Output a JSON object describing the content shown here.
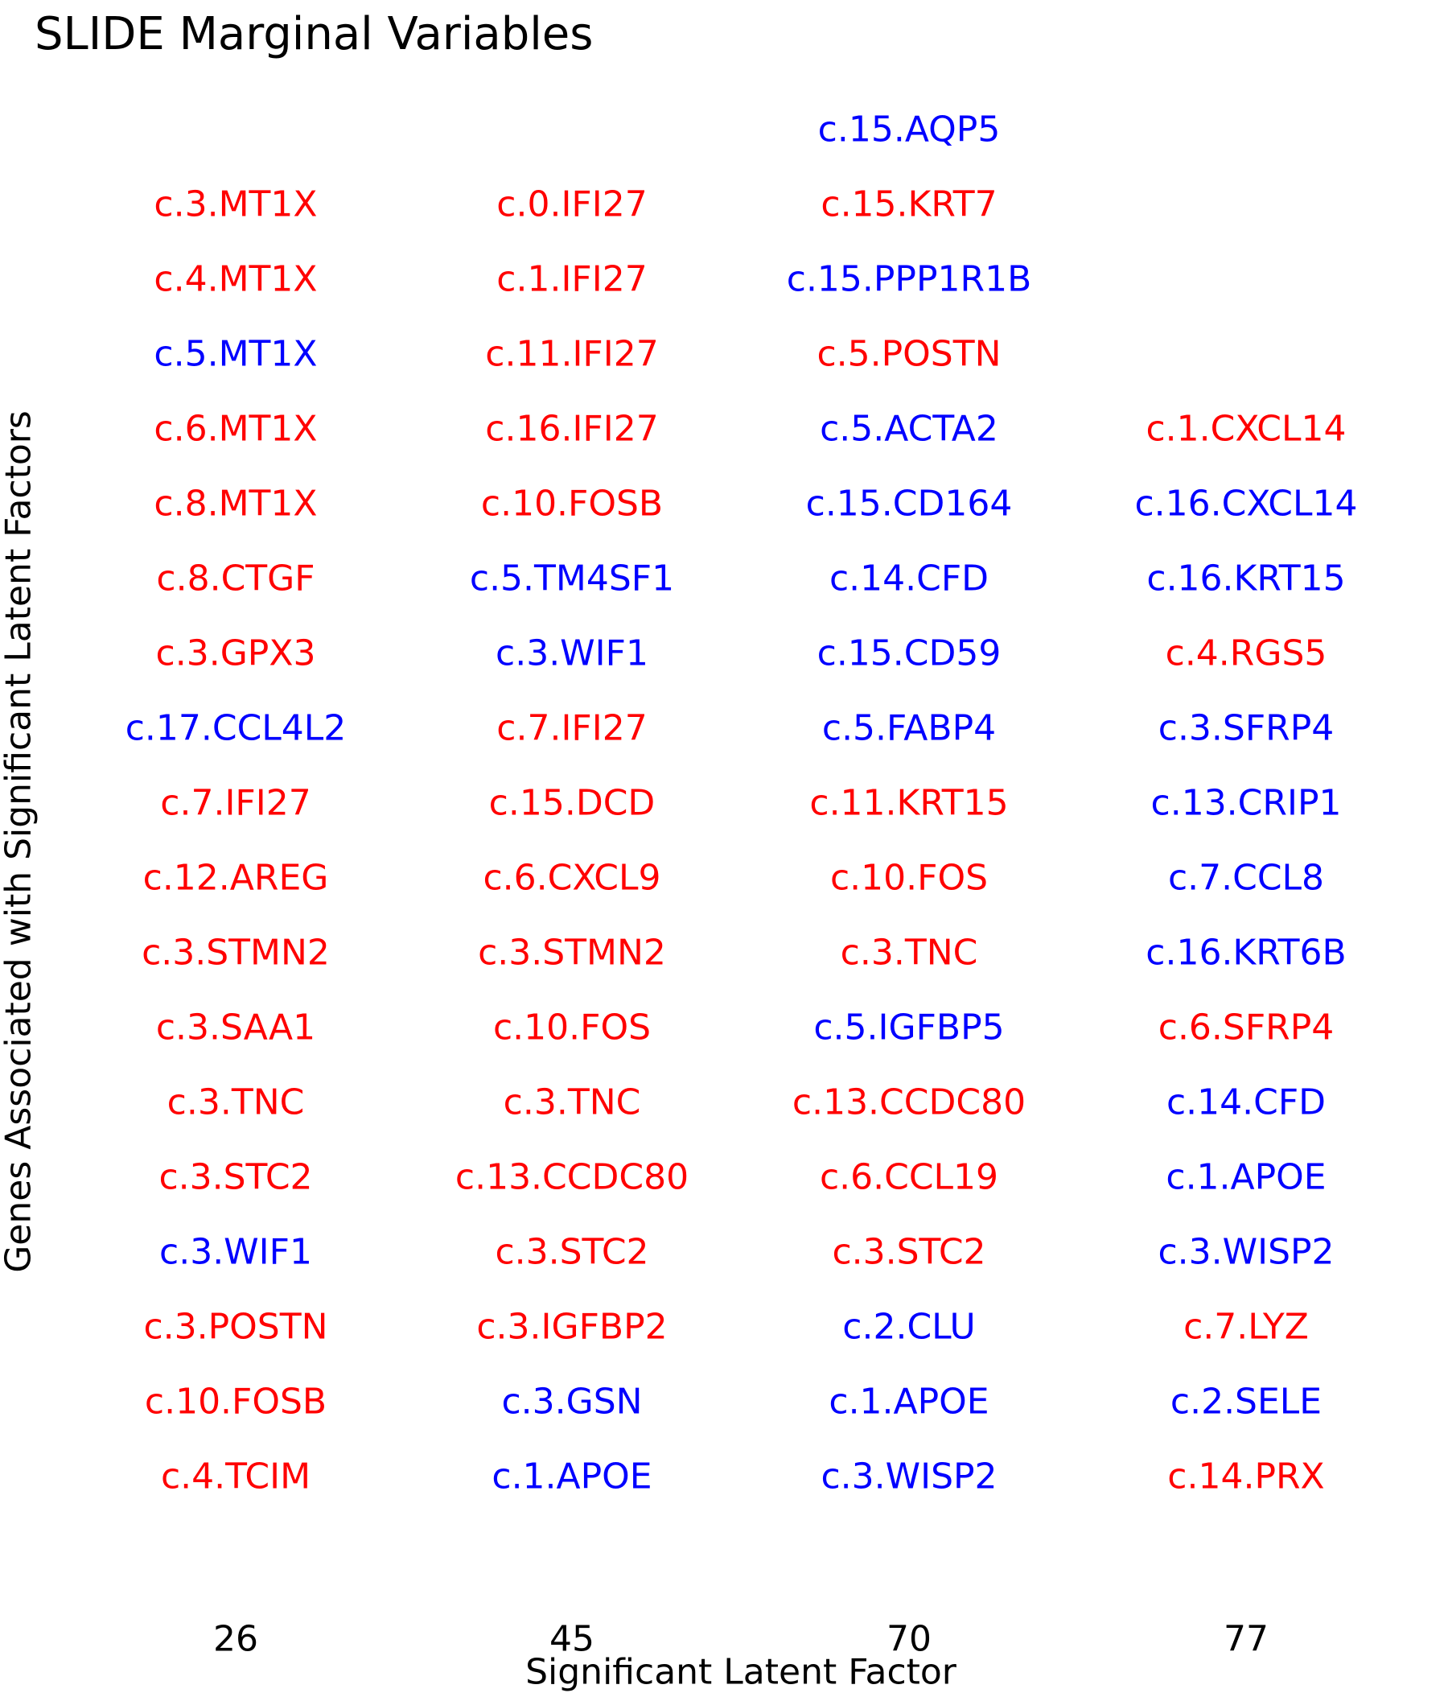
{
  "chart_data": {
    "type": "table",
    "title": "SLIDE Marginal Variables",
    "xlabel": "Significant Latent Factor",
    "ylabel": "Genes Associated with Significant Latent Factors",
    "colors": {
      "positive": "#ff0000",
      "negative": "#0000ff",
      "text": "#000000"
    },
    "grid": false,
    "legend": "none",
    "categories": [
      "26",
      "45",
      "70",
      "77"
    ],
    "series": [
      {
        "category": "26",
        "genes": [
          {
            "label": "c.3.MT1X",
            "color": "red"
          },
          {
            "label": "c.4.MT1X",
            "color": "red"
          },
          {
            "label": "c.5.MT1X",
            "color": "blue"
          },
          {
            "label": "c.6.MT1X",
            "color": "red"
          },
          {
            "label": "c.8.MT1X",
            "color": "red"
          },
          {
            "label": "c.8.CTGF",
            "color": "red"
          },
          {
            "label": "c.3.GPX3",
            "color": "red"
          },
          {
            "label": "c.17.CCL4L2",
            "color": "blue"
          },
          {
            "label": "c.7.IFI27",
            "color": "red"
          },
          {
            "label": "c.12.AREG",
            "color": "red"
          },
          {
            "label": "c.3.STMN2",
            "color": "red"
          },
          {
            "label": "c.3.SAA1",
            "color": "red"
          },
          {
            "label": "c.3.TNC",
            "color": "red"
          },
          {
            "label": "c.3.STC2",
            "color": "red"
          },
          {
            "label": "c.3.WIF1",
            "color": "blue"
          },
          {
            "label": "c.3.POSTN",
            "color": "red"
          },
          {
            "label": "c.10.FOSB",
            "color": "red"
          },
          {
            "label": "c.4.TCIM",
            "color": "red"
          }
        ]
      },
      {
        "category": "45",
        "genes": [
          {
            "label": "c.0.IFI27",
            "color": "red"
          },
          {
            "label": "c.1.IFI27",
            "color": "red"
          },
          {
            "label": "c.11.IFI27",
            "color": "red"
          },
          {
            "label": "c.16.IFI27",
            "color": "red"
          },
          {
            "label": "c.10.FOSB",
            "color": "red"
          },
          {
            "label": "c.5.TM4SF1",
            "color": "blue"
          },
          {
            "label": "c.3.WIF1",
            "color": "blue"
          },
          {
            "label": "c.7.IFI27",
            "color": "red"
          },
          {
            "label": "c.15.DCD",
            "color": "red"
          },
          {
            "label": "c.6.CXCL9",
            "color": "red"
          },
          {
            "label": "c.3.STMN2",
            "color": "red"
          },
          {
            "label": "c.10.FOS",
            "color": "red"
          },
          {
            "label": "c.3.TNC",
            "color": "red"
          },
          {
            "label": "c.13.CCDC80",
            "color": "red"
          },
          {
            "label": "c.3.STC2",
            "color": "red"
          },
          {
            "label": "c.3.IGFBP2",
            "color": "red"
          },
          {
            "label": "c.3.GSN",
            "color": "blue"
          },
          {
            "label": "c.1.APOE",
            "color": "blue"
          }
        ]
      },
      {
        "category": "70",
        "genes": [
          {
            "label": "c.15.AQP5",
            "color": "blue"
          },
          {
            "label": "c.15.KRT7",
            "color": "red"
          },
          {
            "label": "c.15.PPP1R1B",
            "color": "blue"
          },
          {
            "label": "c.5.POSTN",
            "color": "red"
          },
          {
            "label": "c.5.ACTA2",
            "color": "blue"
          },
          {
            "label": "c.15.CD164",
            "color": "blue"
          },
          {
            "label": "c.14.CFD",
            "color": "blue"
          },
          {
            "label": "c.15.CD59",
            "color": "blue"
          },
          {
            "label": "c.5.FABP4",
            "color": "blue"
          },
          {
            "label": "c.11.KRT15",
            "color": "red"
          },
          {
            "label": "c.10.FOS",
            "color": "red"
          },
          {
            "label": "c.3.TNC",
            "color": "red"
          },
          {
            "label": "c.5.IGFBP5",
            "color": "blue"
          },
          {
            "label": "c.13.CCDC80",
            "color": "red"
          },
          {
            "label": "c.6.CCL19",
            "color": "red"
          },
          {
            "label": "c.3.STC2",
            "color": "red"
          },
          {
            "label": "c.2.CLU",
            "color": "blue"
          },
          {
            "label": "c.1.APOE",
            "color": "blue"
          },
          {
            "label": "c.3.WISP2",
            "color": "blue"
          }
        ]
      },
      {
        "category": "77",
        "genes": [
          {
            "label": "c.1.CXCL14",
            "color": "red"
          },
          {
            "label": "c.16.CXCL14",
            "color": "blue"
          },
          {
            "label": "c.16.KRT15",
            "color": "blue"
          },
          {
            "label": "c.4.RGS5",
            "color": "red"
          },
          {
            "label": "c.3.SFRP4",
            "color": "blue"
          },
          {
            "label": "c.13.CRIP1",
            "color": "blue"
          },
          {
            "label": "c.7.CCL8",
            "color": "blue"
          },
          {
            "label": "c.16.KRT6B",
            "color": "blue"
          },
          {
            "label": "c.6.SFRP4",
            "color": "red"
          },
          {
            "label": "c.14.CFD",
            "color": "blue"
          },
          {
            "label": "c.1.APOE",
            "color": "blue"
          },
          {
            "label": "c.3.WISP2",
            "color": "blue"
          },
          {
            "label": "c.7.LYZ",
            "color": "red"
          },
          {
            "label": "c.2.SELE",
            "color": "blue"
          },
          {
            "label": "c.14.PRX",
            "color": "red"
          }
        ]
      }
    ]
  }
}
